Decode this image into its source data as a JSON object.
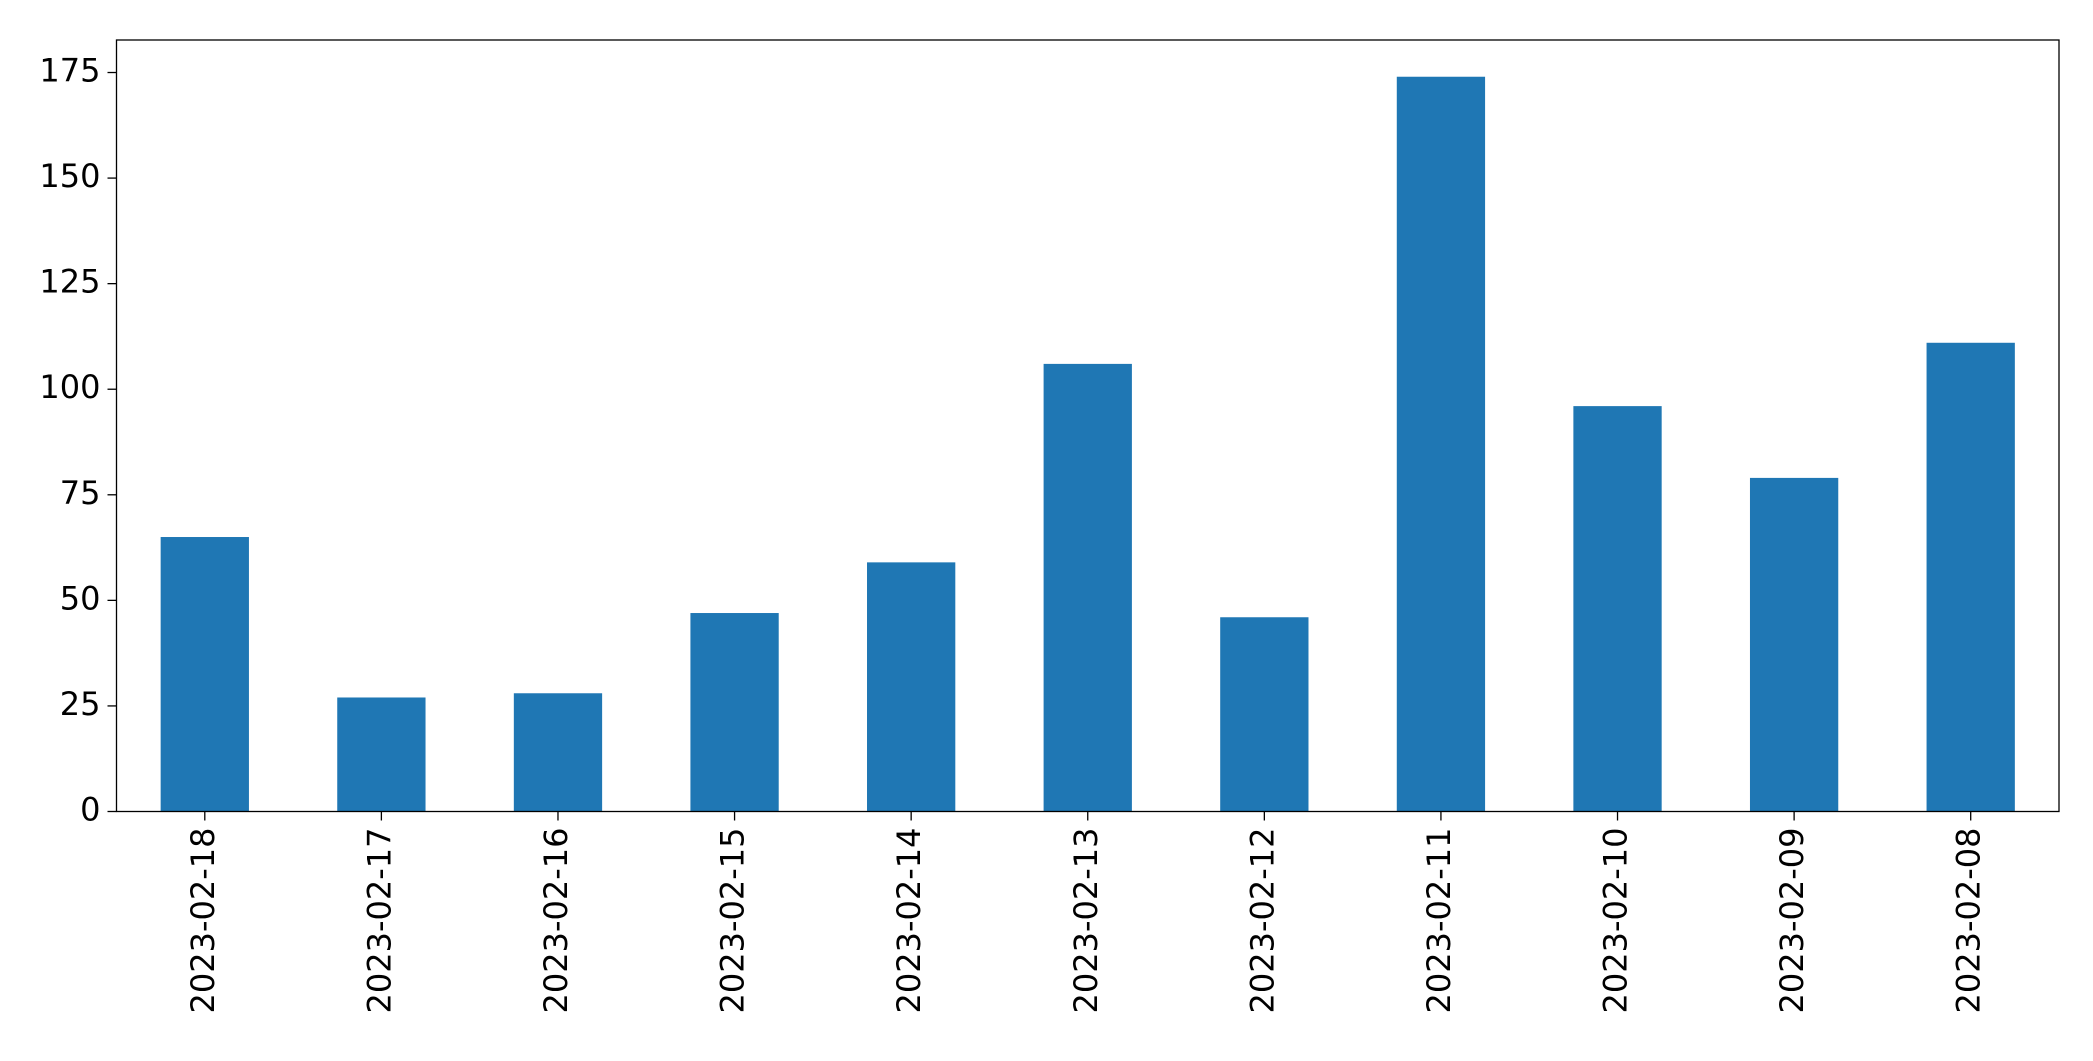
{
  "chart_data": {
    "type": "bar",
    "categories": [
      "2023-02-18",
      "2023-02-17",
      "2023-02-16",
      "2023-02-15",
      "2023-02-14",
      "2023-02-13",
      "2023-02-12",
      "2023-02-11",
      "2023-02-10",
      "2023-02-09",
      "2023-02-08"
    ],
    "values": [
      65,
      27,
      28,
      47,
      59,
      106,
      46,
      174,
      96,
      79,
      111
    ],
    "color": "#1f77b4",
    "ylim": [
      0,
      182.7
    ],
    "yticks": [
      0,
      25,
      50,
      75,
      100,
      125,
      150,
      175
    ],
    "grid": false
  }
}
